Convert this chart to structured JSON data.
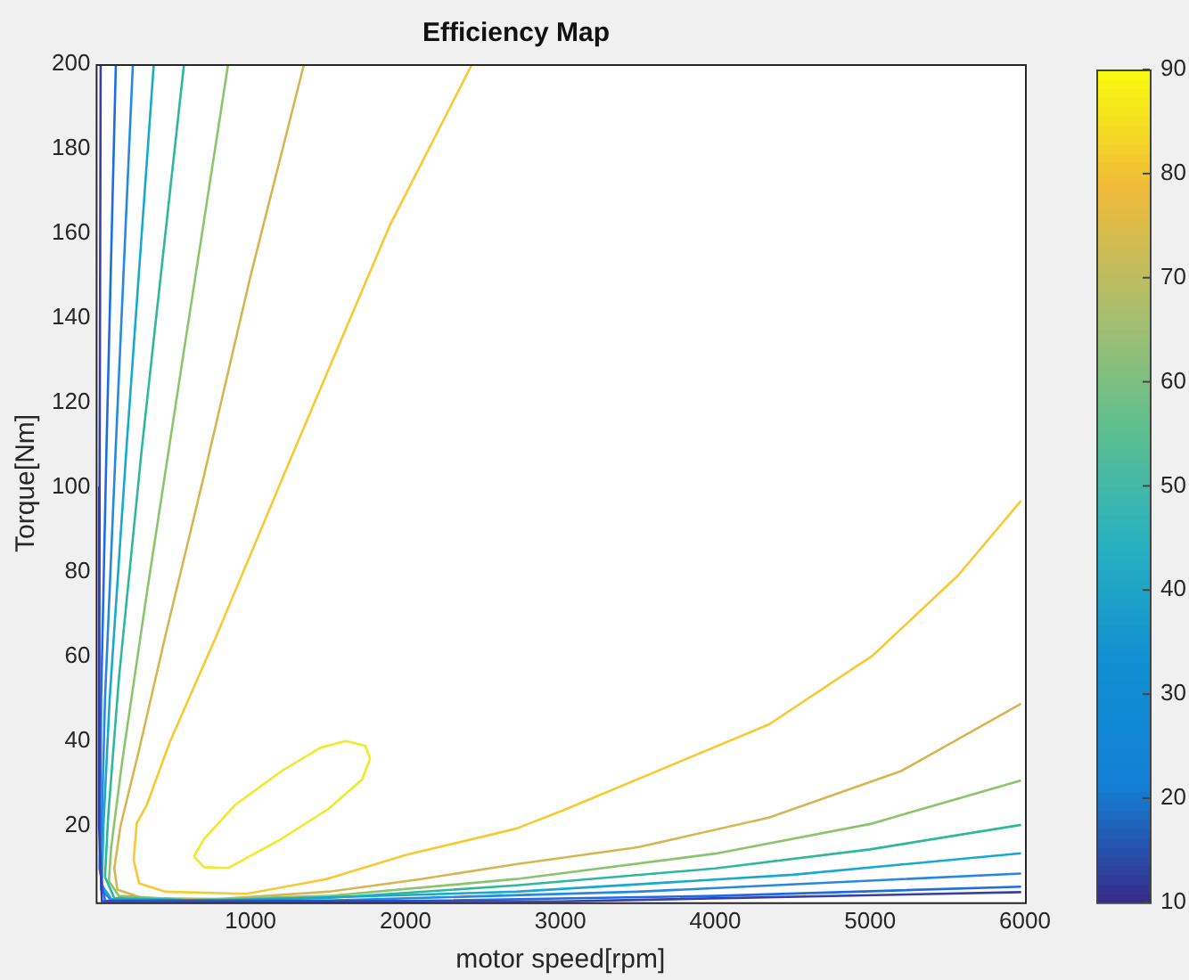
{
  "chart_data": {
    "type": "line",
    "title": "Efficiency Map",
    "xlabel": "motor speed[rpm]",
    "ylabel": "Torque[Nm]",
    "xlim": [
      0,
      6000
    ],
    "xticks": [
      1000,
      2000,
      3000,
      4000,
      5000,
      6000
    ],
    "ylim": [
      2,
      200
    ],
    "yticks": [
      20,
      40,
      60,
      80,
      100,
      120,
      140,
      160,
      180,
      200
    ],
    "grid": false,
    "legend": false,
    "marker": "none",
    "line_style": "solid",
    "clim": [
      10,
      90
    ],
    "cticks": [
      10,
      20,
      30,
      40,
      50,
      60,
      70,
      80,
      90
    ],
    "series": [
      {
        "color": "#3a3fa8",
        "x": [
          32,
          25,
          22,
          40,
          3000,
          5975
        ],
        "values": [
          200,
          100,
          20,
          2.2,
          2.2,
          4.4
        ]
      },
      {
        "color": "#1c6ce9",
        "x": [
          130,
          70,
          35,
          25,
          60,
          2000,
          4000,
          5975
        ],
        "values": [
          200,
          110,
          50,
          10,
          2.4,
          2.3,
          3.5,
          5.7
        ]
      },
      {
        "color": "#2688e0",
        "x": [
          240,
          130,
          60,
          35,
          35,
          100,
          1500,
          3500,
          5975
        ],
        "values": [
          200,
          110,
          50,
          15,
          5,
          2.5,
          2.4,
          4.5,
          8.8
        ]
      },
      {
        "color": "#17a9cf",
        "x": [
          375,
          200,
          90,
          50,
          40,
          100,
          800,
          2715,
          4500,
          5975
        ],
        "values": [
          200,
          110,
          50,
          20,
          6,
          2.8,
          2.4,
          4.5,
          8.5,
          13.6
        ]
      },
      {
        "color": "#2db89c",
        "x": [
          570,
          300,
          150,
          80,
          60,
          120,
          600,
          1500,
          2715,
          4000,
          5000,
          5975
        ],
        "values": [
          200,
          110,
          55,
          22,
          8,
          3,
          2.5,
          3,
          6,
          10,
          14.5,
          20.3
        ]
      },
      {
        "color": "#8cc46e",
        "x": [
          855,
          560,
          330,
          170,
          100,
          85,
          150,
          600,
          1500,
          2715,
          4000,
          5000,
          5975
        ],
        "values": [
          200,
          130,
          75,
          35,
          15,
          7,
          3.5,
          2.6,
          3.5,
          7.5,
          13.5,
          20.5,
          30.8
        ]
      },
      {
        "color": "#d7b651",
        "x": [
          1345,
          1000,
          694,
          450,
          280,
          160,
          120,
          140,
          300,
          800,
          1500,
          2100,
          2715,
          3500,
          4346,
          5200,
          5975
        ],
        "values": [
          200,
          150,
          102,
          65,
          38,
          20,
          10,
          5,
          3,
          2.8,
          4.5,
          7.5,
          11,
          15,
          22,
          33,
          48.9
        ]
      },
      {
        "color": "#f9c932",
        "x": [
          2430,
          1900,
          1284,
          780,
          480,
          330,
          265,
          245,
          280,
          450,
          975,
          1490,
          2005,
          2715,
          3022,
          4346,
          5020,
          5570,
          5975
        ],
        "values": [
          200,
          162,
          109,
          65,
          40,
          25,
          20.7,
          12,
          6.5,
          4.5,
          4,
          7.5,
          13.2,
          19.4,
          23.8,
          44,
          60.4,
          79.3,
          96.9
        ]
      },
      {
        "color": "#f2e92a",
        "x": [
          634,
          700,
          900,
          1200,
          1450,
          1613,
          1740,
          1772
        ],
        "values": [
          12.8,
          17,
          25,
          33,
          38.5,
          40.1,
          39,
          36
        ]
      },
      {
        "color": "#f2e92a",
        "x": [
          634,
          700,
          855,
          1000,
          1200,
          1500,
          1720,
          1772
        ],
        "values": [
          12.8,
          10.3,
          10.1,
          13,
          17,
          24,
          31,
          36
        ]
      }
    ]
  }
}
